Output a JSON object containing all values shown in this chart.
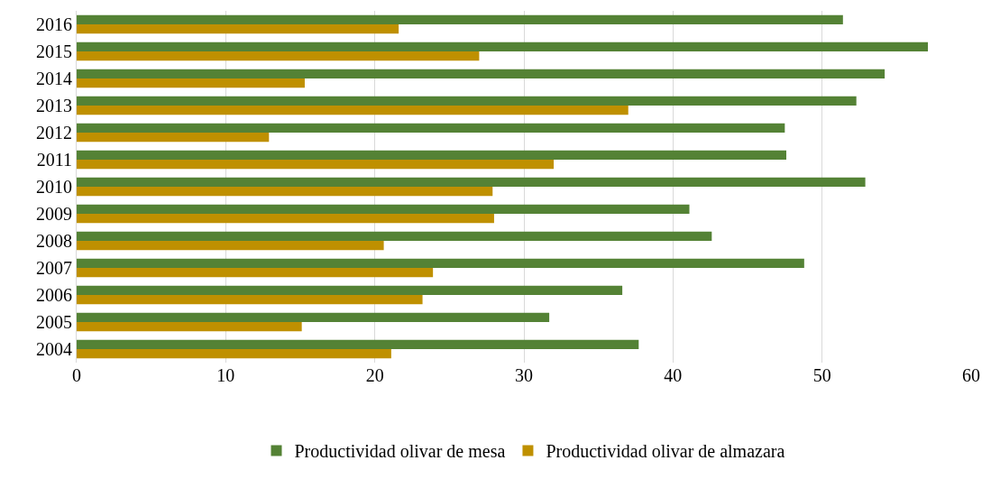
{
  "chart_data": {
    "type": "bar",
    "orientation": "horizontal",
    "categories": [
      "2016",
      "2015",
      "2014",
      "2013",
      "2012",
      "2011",
      "2010",
      "2009",
      "2008",
      "2007",
      "2006",
      "2005",
      "2004"
    ],
    "series": [
      {
        "name": "Productividad olivar de mesa",
        "color": "#548235",
        "values": [
          51.4,
          57.1,
          54.2,
          52.3,
          47.5,
          47.6,
          52.9,
          41.1,
          42.6,
          48.8,
          36.6,
          31.7,
          37.7
        ]
      },
      {
        "name": "Productividad olivar de almazara",
        "color": "#bf9000",
        "values": [
          21.6,
          27.0,
          15.3,
          37.0,
          12.9,
          32.0,
          27.9,
          28.0,
          20.6,
          23.9,
          23.2,
          15.1,
          21.1
        ]
      }
    ],
    "xlim": [
      0,
      60
    ],
    "xticks": [
      0,
      10,
      20,
      30,
      40,
      50,
      60
    ],
    "grid": "x",
    "legend": "bottom"
  }
}
